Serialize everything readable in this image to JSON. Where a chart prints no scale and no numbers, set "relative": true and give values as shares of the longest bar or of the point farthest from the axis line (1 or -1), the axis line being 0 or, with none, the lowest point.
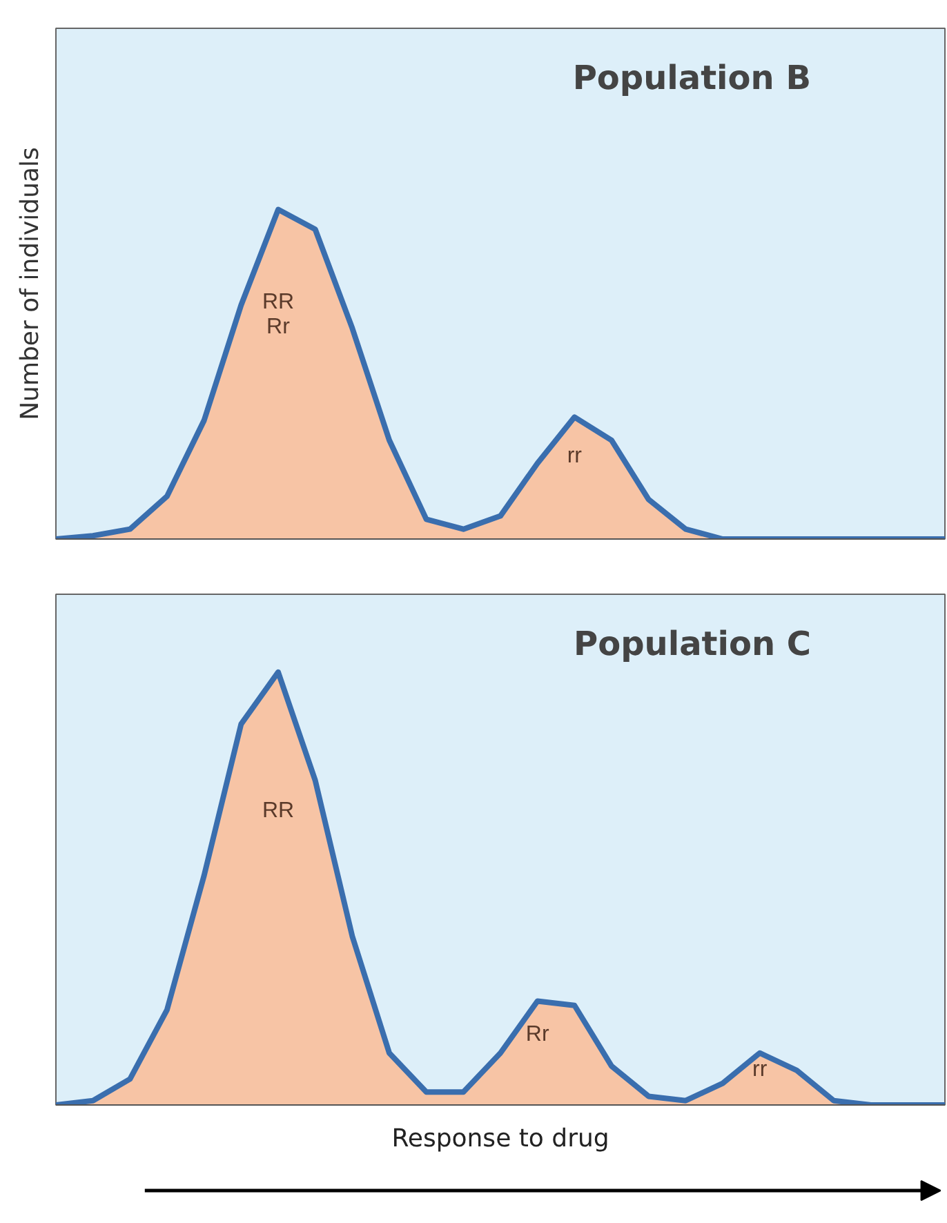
{
  "chart_data": [
    {
      "type": "area",
      "title": "Population B",
      "ylabel": "Number of individuals",
      "relative": true,
      "categories": [
        null,
        null,
        null,
        null,
        null,
        null,
        null,
        null,
        null,
        null,
        null,
        null,
        null,
        null,
        null,
        null,
        null,
        null,
        null,
        null,
        null,
        null,
        null,
        null,
        null
      ],
      "series": [
        {
          "color": "#f7c4a5",
          "values": [
            0,
            0.01,
            0.03,
            0.13,
            0.36,
            0.71,
            1,
            0.94,
            0.64,
            0.3,
            0.06,
            0.03,
            0.07,
            0.23,
            0.37,
            0.3,
            0.12,
            0.03,
            0,
            0,
            0,
            0,
            0,
            0,
            0
          ]
        }
      ],
      "annotations": [
        "RR\nRr",
        "rr"
      ]
    },
    {
      "type": "area",
      "title": "Population C",
      "xlabel": "Response to drug",
      "relative": true,
      "categories": [
        null,
        null,
        null,
        null,
        null,
        null,
        null,
        null,
        null,
        null,
        null,
        null,
        null,
        null,
        null,
        null,
        null,
        null,
        null,
        null,
        null,
        null,
        null,
        null,
        null
      ],
      "series": [
        {
          "color": "#f7c4a5",
          "values": [
            0,
            0.01,
            0.06,
            0.22,
            0.53,
            0.88,
            1,
            0.75,
            0.39,
            0.12,
            0.03,
            0.03,
            0.12,
            0.24,
            0.23,
            0.09,
            0.02,
            0.01,
            0.05,
            0.12,
            0.08,
            0.01,
            0,
            0,
            0
          ]
        }
      ],
      "annotations": [
        "RR",
        "Rr",
        "rr"
      ]
    }
  ]
}
